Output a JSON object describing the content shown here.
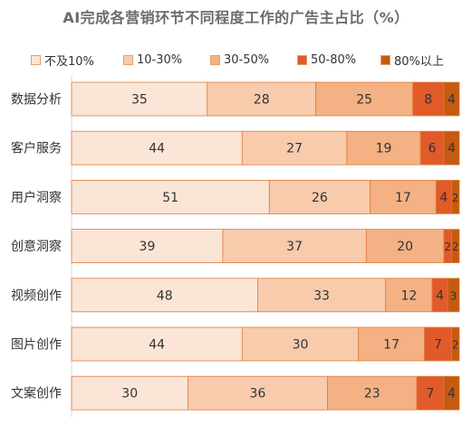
{
  "chart_data": {
    "type": "bar",
    "orientation": "horizontal",
    "stacked": true,
    "title": "AI完成各营销环节不同程度工作的广告主占比（%）",
    "categories": [
      "数据分析",
      "客户服务",
      "用户洞察",
      "创意洞察",
      "视频创作",
      "图片创作",
      "文案创作"
    ],
    "series": [
      {
        "name": "不及10%",
        "color": "#fbe5d6",
        "values": [
          35,
          44,
          51,
          39,
          48,
          44,
          30
        ]
      },
      {
        "name": "10-30%",
        "color": "#f8cbad",
        "values": [
          28,
          27,
          26,
          37,
          33,
          30,
          36
        ]
      },
      {
        "name": "30-50%",
        "color": "#f4b183",
        "values": [
          25,
          19,
          17,
          20,
          12,
          17,
          23
        ]
      },
      {
        "name": "50-80%",
        "color": "#e15a2a",
        "values": [
          8,
          6,
          4,
          2,
          4,
          7,
          7
        ]
      },
      {
        "name": "80%以上",
        "color": "#c55a11",
        "values": [
          4,
          4,
          2,
          2,
          3,
          2,
          4
        ]
      }
    ],
    "legend_position": "top",
    "grid": false
  }
}
